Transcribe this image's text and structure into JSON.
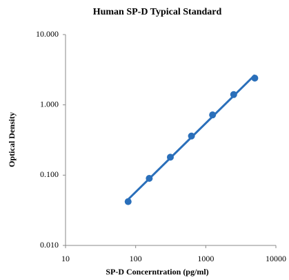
{
  "chart_data": {
    "type": "scatter",
    "title": "Human SP-D Typical Standard",
    "x_label": "SP-D Concerntration (pg/ml)",
    "y_label": "Optical Density",
    "log_x": true,
    "log_y": true,
    "trendline": true,
    "grid": false,
    "series": [
      {
        "color": "#2a6fba",
        "x": [
          78.125,
          156.25,
          312.5,
          625,
          1250,
          2500,
          5000
        ],
        "values": [
          0.042,
          0.09,
          0.18,
          0.36,
          0.72,
          1.4,
          2.4
        ]
      }
    ],
    "xlim": [
      10,
      10000
    ],
    "xticks": [
      10,
      100,
      1000,
      10000
    ],
    "ylim": [
      0.01,
      10
    ],
    "yticks": [
      {
        "value": 0.01,
        "label": "0.010"
      },
      {
        "value": 0.1,
        "label": "0.100"
      },
      {
        "value": 1,
        "label": "1.000"
      },
      {
        "value": 10,
        "label": "10.000"
      }
    ]
  }
}
